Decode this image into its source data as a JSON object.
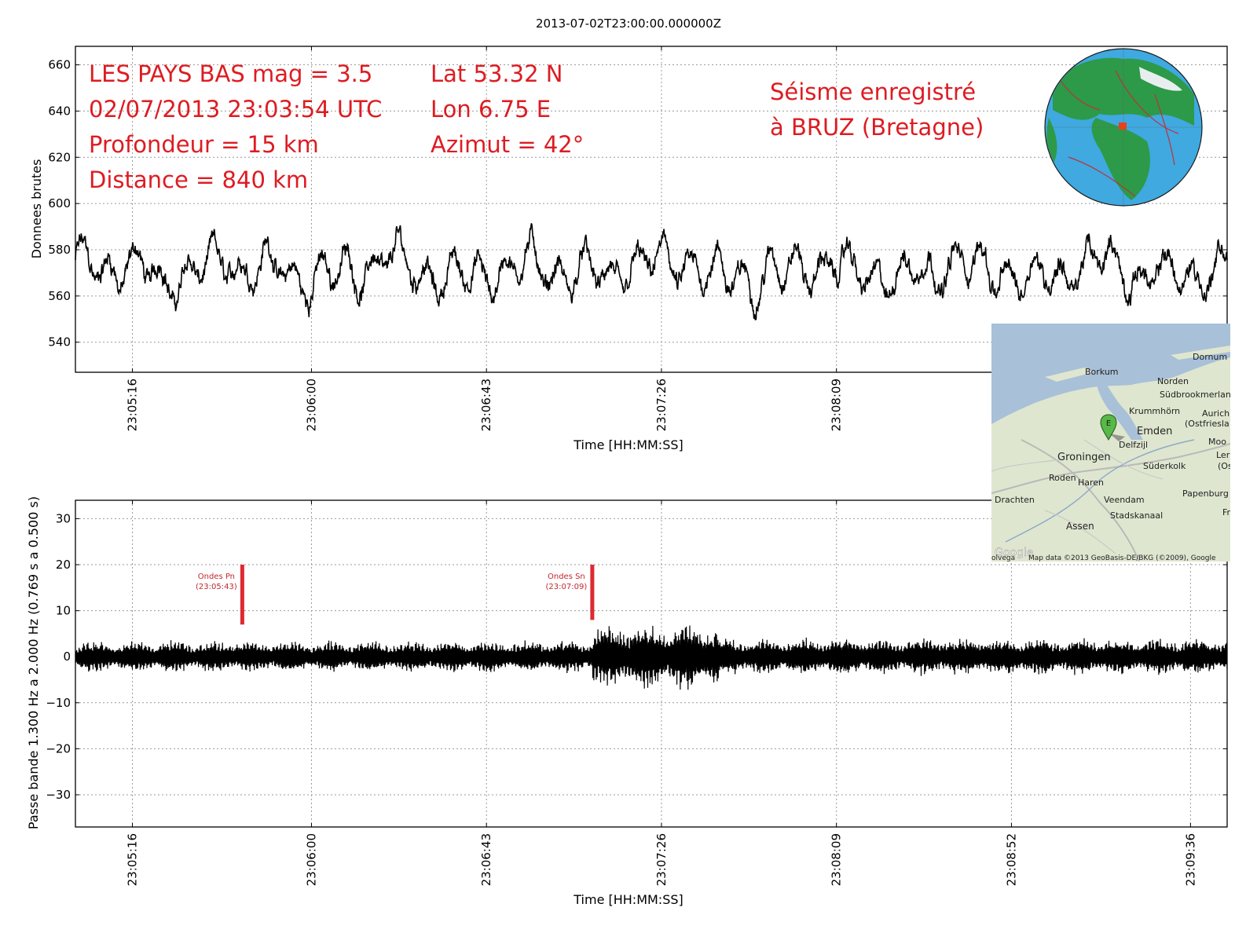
{
  "title": "2013-07-02T23:00:00.000000Z",
  "colors": {
    "annotation": "#dd1c22",
    "trace": "#000000",
    "marker": "#dd2a30",
    "ocean": "#3fa9e0",
    "land": "#2c9a48",
    "map_water": "#a8c0d8",
    "map_land": "#dfe6cf"
  },
  "annotations": {
    "event": "LES PAYS BAS mag = 3.5",
    "datetime": "02/07/2013 23:03:54 UTC",
    "depth": "Profondeur = 15 km",
    "distance": "Distance = 840 km",
    "lat": "Lat 53.32 N",
    "lon": "Lon 6.75 E",
    "azimuth": "Azimut = 42°",
    "station_line1": "Séisme enregistré",
    "station_line2": "à BRUZ (Bretagne)"
  },
  "inset_map": {
    "marker": "E",
    "places": [
      "Borkum",
      "Dornum",
      "Norden",
      "Südbrookmerland",
      "Aurich",
      "(Ostfriesla",
      "Krummhörn",
      "Emden",
      "Delfzijl",
      "Groningen",
      "Moo",
      "Ler",
      "(Os",
      "Süderkolk",
      "Roden",
      "Haren",
      "Drachten",
      "Veendam",
      "Papenburg",
      "Stadskanaal",
      "Fr",
      "Assen"
    ],
    "attribution": "Map data ©2013 GeoBasis-DE/BKG (©2009), Google",
    "google_logo": "Google",
    "fragment": "olvega"
  },
  "chart_data": [
    {
      "type": "line",
      "name": "raw",
      "ylabel": "Donnees brutes",
      "xlabel": "Time [HH:MM:SS]",
      "x_range": [
        "23:05:02",
        "23:09:45"
      ],
      "ylim": [
        527,
        668
      ],
      "yticks": [
        540,
        560,
        580,
        600,
        620,
        640,
        660
      ],
      "xtick_labels": [
        "23:05:16",
        "23:06:00",
        "23:06:43",
        "23:07:26",
        "23:08:09"
      ],
      "grid": true,
      "mean": 571,
      "extrema": {
        "min": 549,
        "max": 599
      }
    },
    {
      "type": "line",
      "name": "filtered",
      "ylabel": "Passe bande 1.300 Hz a 2.000 Hz (0.769 s a 0.500 s)",
      "xlabel": "Time [HH:MM:SS]",
      "x_range": [
        "23:05:02",
        "23:09:45"
      ],
      "ylim": [
        -37,
        34
      ],
      "yticks": [
        -30,
        -20,
        -10,
        0,
        10,
        20,
        30
      ],
      "ytick_labels": [
        "−30",
        "−20",
        "−10",
        "0",
        "10",
        "20",
        "30"
      ],
      "xtick_labels": [
        "23:05:16",
        "23:06:00",
        "23:06:43",
        "23:07:26",
        "23:08:09",
        "23:08:52",
        "23:09:36"
      ],
      "grid": true,
      "markers": [
        {
          "name": "Ondes Pn",
          "time": "(23:05:43)",
          "ymin": 7,
          "ymax": 20
        },
        {
          "name": "Ondes Sn",
          "time": "(23:07:09)",
          "ymin": 8,
          "ymax": 20
        }
      ],
      "amplitude_envelope": [
        {
          "from": "23:05:02",
          "to": "23:07:09",
          "amplitude": 3
        },
        {
          "from": "23:07:09",
          "to": "23:07:40",
          "amplitude": 6
        },
        {
          "from": "23:07:40",
          "to": "23:09:45",
          "amplitude": 3.5
        }
      ]
    }
  ]
}
